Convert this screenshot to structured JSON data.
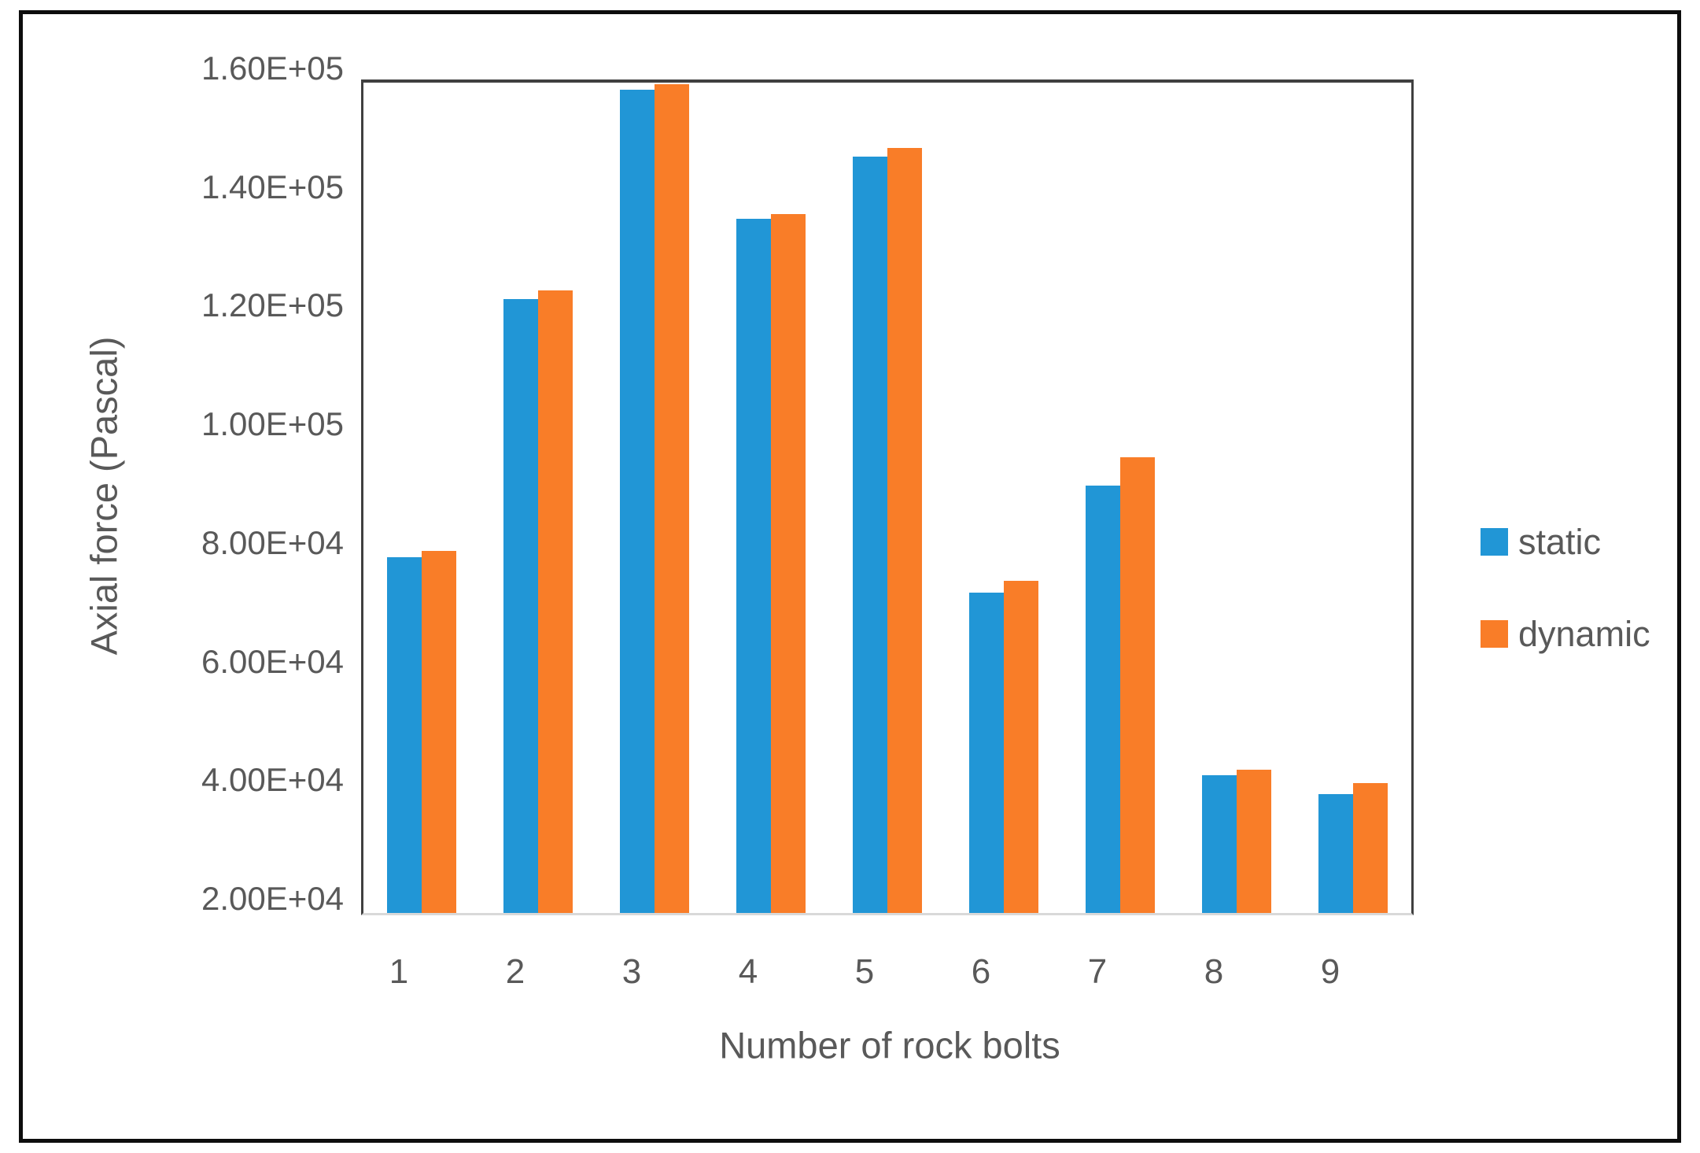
{
  "figure": {
    "background_color": "#ffffff",
    "frame_border_color": "#0d0d0d",
    "axis_line_color": "#404040",
    "baseline_color": "#d9d9d9",
    "text_color": "#595959"
  },
  "chart_data": {
    "type": "bar",
    "title": "",
    "xlabel": "Number of rock bolts",
    "ylabel": "Axial force (Pascal)",
    "categories": [
      "1",
      "2",
      "3",
      "4",
      "5",
      "6",
      "7",
      "8",
      "9"
    ],
    "series": [
      {
        "name": "static",
        "color": "#2196d6",
        "values": [
          80000,
          123500,
          158800,
          137000,
          147500,
          74000,
          92000,
          43200,
          40000
        ]
      },
      {
        "name": "dynamic",
        "color": "#f97d28",
        "values": [
          81000,
          125000,
          159800,
          137800,
          149000,
          76000,
          96900,
          44200,
          41900
        ]
      }
    ],
    "ylim": [
      20000,
      160000
    ],
    "yticks": {
      "values": [
        20000,
        40000,
        60000,
        80000,
        100000,
        120000,
        140000,
        160000
      ],
      "labels": [
        "2.00E+04",
        "4.00E+04",
        "6.00E+04",
        "8.00E+04",
        "1.00E+05",
        "1.20E+05",
        "1.40E+05",
        "1.60E+05"
      ]
    },
    "legend": {
      "position": "right",
      "entries": [
        "static",
        "dynamic"
      ]
    },
    "grid": false
  }
}
